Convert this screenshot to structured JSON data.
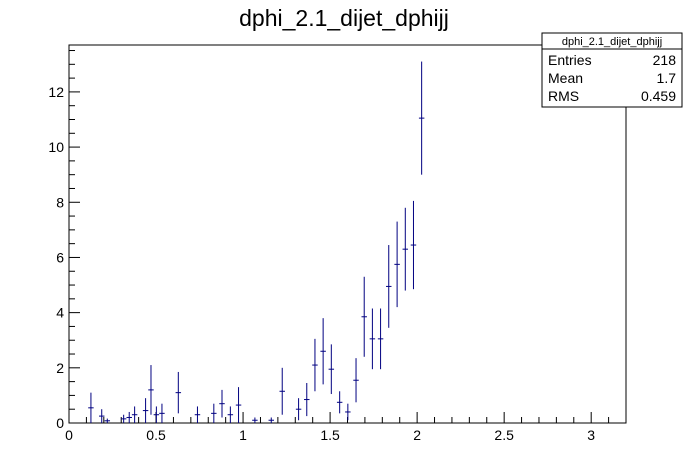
{
  "chart_data": {
    "type": "scatter",
    "title": "dphi_2.1_dijet_dphijj",
    "xlabel": "",
    "ylabel": "",
    "xlim": [
      0,
      3.2
    ],
    "ylim": [
      0,
      13.7
    ],
    "x_ticks": [
      "0",
      "0.5",
      "1",
      "1.5",
      "2",
      "2.5",
      "3"
    ],
    "y_ticks": [
      "0",
      "2",
      "4",
      "6",
      "8",
      "10",
      "12"
    ],
    "grid": false,
    "color": "#000080",
    "stats_box": {
      "name": "dphi_2.1_dijet_dphijj",
      "rows": [
        {
          "label": "Entries",
          "value": "218"
        },
        {
          "label": "Mean",
          "value": "1.7"
        },
        {
          "label": "RMS",
          "value": "0.459"
        }
      ]
    },
    "bin_width": 0.0314,
    "points": [
      {
        "x": 0.126,
        "y": 0.55,
        "err": 0.55
      },
      {
        "x": 0.188,
        "y": 0.25,
        "err": 0.25
      },
      {
        "x": 0.22,
        "y": 0.08,
        "err": 0.08
      },
      {
        "x": 0.314,
        "y": 0.15,
        "err": 0.15
      },
      {
        "x": 0.346,
        "y": 0.2,
        "err": 0.2
      },
      {
        "x": 0.377,
        "y": 0.3,
        "err": 0.3
      },
      {
        "x": 0.44,
        "y": 0.45,
        "err": 0.45
      },
      {
        "x": 0.471,
        "y": 1.2,
        "err": 0.9
      },
      {
        "x": 0.502,
        "y": 0.3,
        "err": 0.3
      },
      {
        "x": 0.534,
        "y": 0.35,
        "err": 0.35
      },
      {
        "x": 0.628,
        "y": 1.1,
        "err": 0.75
      },
      {
        "x": 0.738,
        "y": 0.3,
        "err": 0.3
      },
      {
        "x": 0.832,
        "y": 0.35,
        "err": 0.35
      },
      {
        "x": 0.879,
        "y": 0.7,
        "err": 0.5
      },
      {
        "x": 0.927,
        "y": 0.3,
        "err": 0.3
      },
      {
        "x": 0.974,
        "y": 0.65,
        "err": 0.65
      },
      {
        "x": 1.068,
        "y": 0.1,
        "err": 0.1
      },
      {
        "x": 1.162,
        "y": 0.1,
        "err": 0.1
      },
      {
        "x": 1.225,
        "y": 1.15,
        "err": 0.85
      },
      {
        "x": 1.319,
        "y": 0.5,
        "err": 0.4
      },
      {
        "x": 1.366,
        "y": 0.85,
        "err": 0.6
      },
      {
        "x": 1.413,
        "y": 2.1,
        "err": 0.95
      },
      {
        "x": 1.46,
        "y": 2.6,
        "err": 1.2
      },
      {
        "x": 1.507,
        "y": 1.95,
        "err": 0.9
      },
      {
        "x": 1.555,
        "y": 0.75,
        "err": 0.4
      },
      {
        "x": 1.602,
        "y": 0.4,
        "err": 0.3
      },
      {
        "x": 1.649,
        "y": 1.55,
        "err": 0.8
      },
      {
        "x": 1.696,
        "y": 3.85,
        "err": 1.45
      },
      {
        "x": 1.743,
        "y": 3.05,
        "err": 1.1
      },
      {
        "x": 1.79,
        "y": 3.05,
        "err": 1.1
      },
      {
        "x": 1.837,
        "y": 4.95,
        "err": 1.5
      },
      {
        "x": 1.885,
        "y": 5.75,
        "err": 1.55
      },
      {
        "x": 1.932,
        "y": 6.3,
        "err": 1.5
      },
      {
        "x": 1.979,
        "y": 6.45,
        "err": 1.6
      },
      {
        "x": 2.026,
        "y": 11.05,
        "err": 2.05
      }
    ]
  }
}
